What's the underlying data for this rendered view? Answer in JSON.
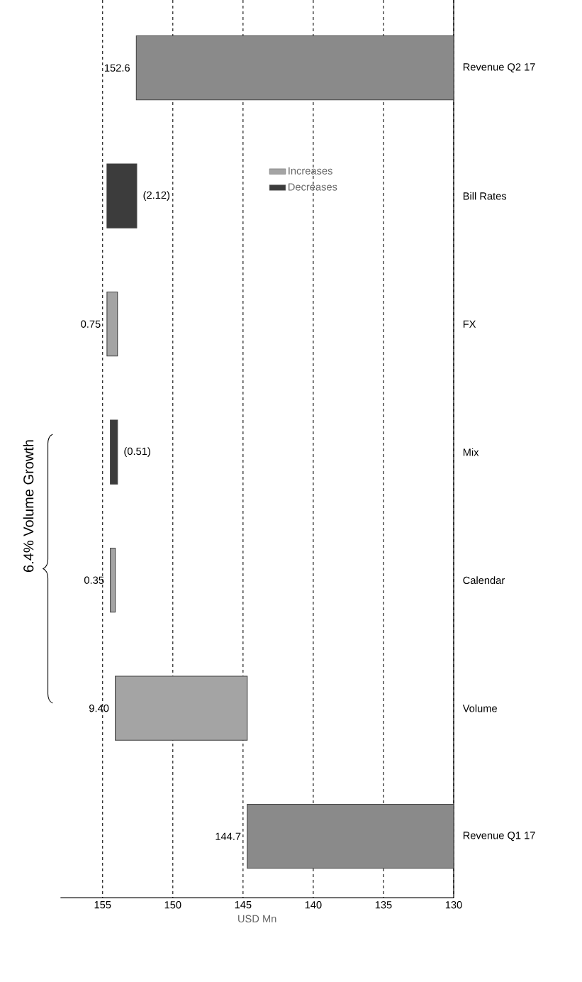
{
  "chart_data": {
    "type": "bar",
    "orientation": "horizontal",
    "categories": [
      "Revenue Q2 17",
      "Bill Rates",
      "FX",
      "Mix",
      "Calendar",
      "Volume",
      "Revenue Q1 17"
    ],
    "series": [
      {
        "color": "#8a8a8a",
        "values": [
          22.6,
          null,
          null,
          null,
          null,
          null,
          14.7
        ],
        "base": [
          130,
          null,
          null,
          null,
          null,
          null,
          130
        ]
      },
      {
        "name": "Increases",
        "color": "#a4a4a4",
        "values": [
          null,
          null,
          0.75,
          null,
          0.35,
          9.4,
          null
        ],
        "base": [
          null,
          null,
          153.94,
          null,
          154.1,
          144.7,
          null
        ]
      },
      {
        "name": "Decreases",
        "color": "#3c3c3c",
        "values": [
          null,
          -2.12,
          null,
          -0.51,
          null,
          null,
          null
        ],
        "base": [
          null,
          154.69,
          null,
          154.45,
          null,
          null,
          null
        ]
      }
    ],
    "value_labels": [
      "152.6",
      "(2.12)",
      "0.75",
      "(0.51)",
      "0.35",
      "9.40",
      "144.7"
    ],
    "xlim": [
      158,
      130
    ],
    "xticks": [
      155,
      150,
      145,
      140,
      135,
      130
    ],
    "xlabel": "USD Mn",
    "grid": "x",
    "legend": "right",
    "annotations": [
      "6.4%  Volume Growth"
    ]
  }
}
